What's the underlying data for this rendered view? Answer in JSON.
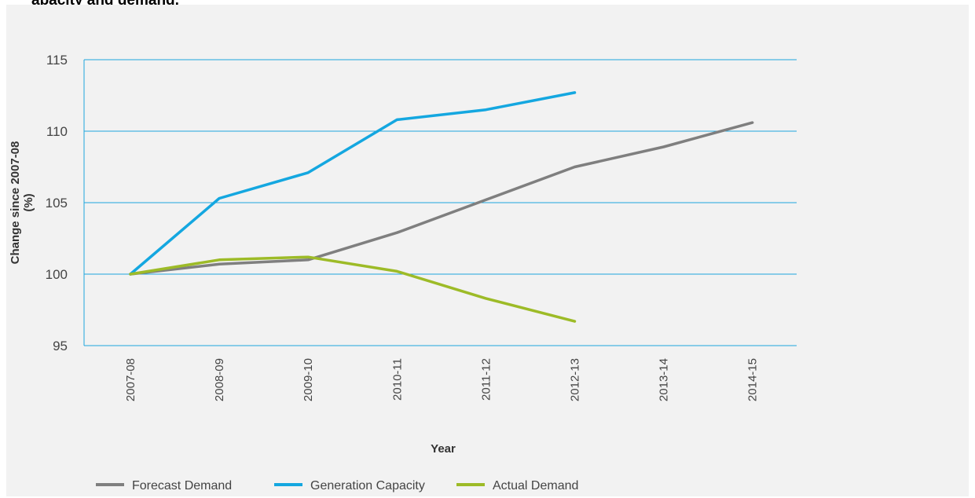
{
  "title_fragment": "apacity and demand, ",
  "chart_data": {
    "type": "line",
    "categories": [
      "2007-08",
      "2008-09",
      "2009-10",
      "2010-11",
      "2011-12",
      "2012-13",
      "2013-14",
      "2014-15"
    ],
    "series": [
      {
        "name": "Forecast Demand",
        "color": "#7f7f7f",
        "values": [
          100,
          100.7,
          101,
          102.9,
          105.2,
          107.5,
          108.9,
          110.6
        ]
      },
      {
        "name": "Generation Capacity",
        "color": "#14a7e0",
        "values": [
          100,
          105.3,
          107.1,
          110.8,
          111.5,
          112.7,
          null,
          null
        ]
      },
      {
        "name": "Actual Demand",
        "color": "#9dbb27",
        "values": [
          100,
          101,
          101.2,
          100.2,
          98.3,
          96.7,
          null,
          null
        ]
      }
    ],
    "y_ticks": [
      95,
      100,
      105,
      110,
      115
    ],
    "ylim": [
      95,
      115
    ],
    "ylabel_line1": "Change since 2007-08",
    "ylabel_line2": "(%)",
    "xlabel": "Year",
    "grid": "horizontal",
    "legend_position": "bottom-left"
  }
}
